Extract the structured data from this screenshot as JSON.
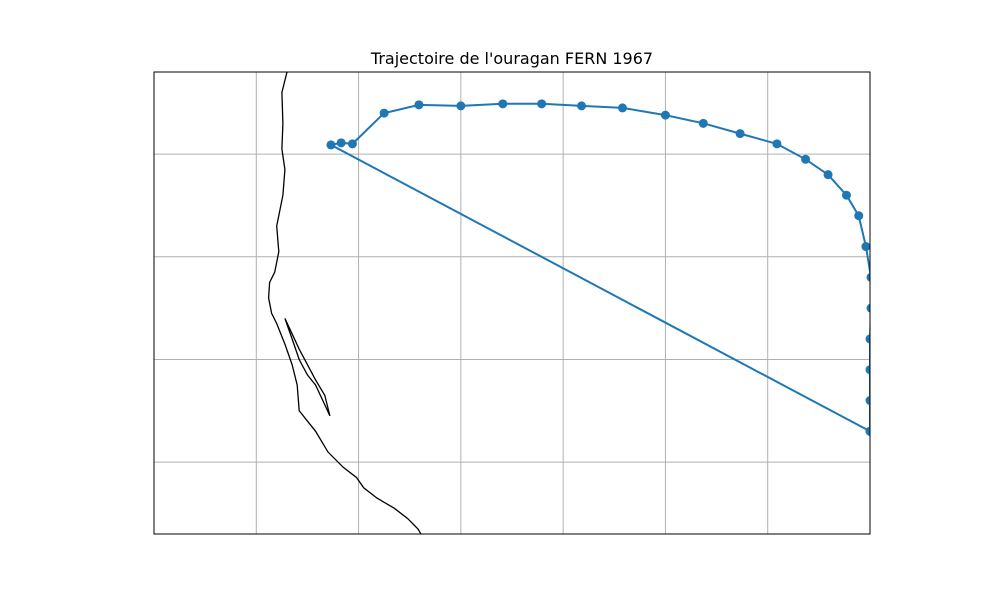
{
  "chart_data": {
    "type": "line",
    "title": "Trajectoire de l'ouragan FERN 1967",
    "xlabel": "",
    "ylabel": "",
    "grid": true,
    "colors": {
      "track": "#1f77b4",
      "coastline": "#000000",
      "grid": "#b0b0b0"
    },
    "xlim": [
      -101.0,
      -94.0
    ],
    "ylim": [
      20.3,
      24.8
    ],
    "grid_x": [
      -100,
      -99,
      -98,
      -97,
      -96,
      -95,
      -94
    ],
    "grid_y": [
      21,
      22,
      23,
      24
    ],
    "series": [
      {
        "lon": [
          -94.0,
          -94.0,
          -94.0,
          -94.0,
          -93.99,
          -93.99,
          -94.04,
          -94.11,
          -94.23,
          -94.41,
          -94.63,
          -94.91,
          -95.27,
          -95.63,
          -96.0,
          -96.42,
          -96.82,
          -97.21,
          -97.59,
          -98.0,
          -98.41,
          -98.75,
          -99.06,
          -99.17,
          -99.27,
          -94.0
        ],
        "lat": [
          21.3,
          21.6,
          21.9,
          22.2,
          22.5,
          22.8,
          23.1,
          23.4,
          23.6,
          23.8,
          23.95,
          24.1,
          24.2,
          24.3,
          24.38,
          24.45,
          24.47,
          24.49,
          24.49,
          24.47,
          24.48,
          24.4,
          24.1,
          24.11,
          24.09,
          21.3
        ]
      }
    ],
    "coastline": {
      "lon": [
        -99.7,
        -99.75,
        -99.74,
        -99.75,
        -99.72,
        -99.74,
        -99.8,
        -99.78,
        -99.82,
        -99.87,
        -99.88,
        -99.85,
        -99.8,
        -99.72,
        -99.65,
        -99.6,
        -99.58,
        -99.42,
        -99.3,
        -99.15,
        -99.02,
        -98.95,
        -98.82,
        -98.65,
        -98.52,
        -98.42,
        -98.36,
        -98.3,
        -98.26,
        -98.26,
        -98.22,
        -98.24
      ],
      "lat": [
        24.8,
        24.6,
        24.3,
        24.05,
        23.85,
        23.6,
        23.3,
        23.05,
        22.85,
        22.75,
        22.6,
        22.45,
        22.35,
        22.15,
        21.95,
        21.75,
        21.5,
        21.3,
        21.1,
        20.95,
        20.85,
        20.75,
        20.65,
        20.55,
        20.45,
        20.35,
        20.25,
        20.15,
        20.0,
        19.85,
        19.65,
        19.55
      ]
    },
    "lagoon": {
      "lon": [
        -99.72,
        -99.65,
        -99.58,
        -99.5,
        -99.42,
        -99.35,
        -99.28,
        -99.33,
        -99.42,
        -99.5,
        -99.58,
        -99.65,
        -99.72
      ],
      "lat": [
        22.4,
        22.2,
        22.0,
        21.85,
        21.75,
        21.6,
        21.45,
        21.65,
        21.8,
        21.95,
        22.1,
        22.25,
        22.4
      ]
    }
  }
}
